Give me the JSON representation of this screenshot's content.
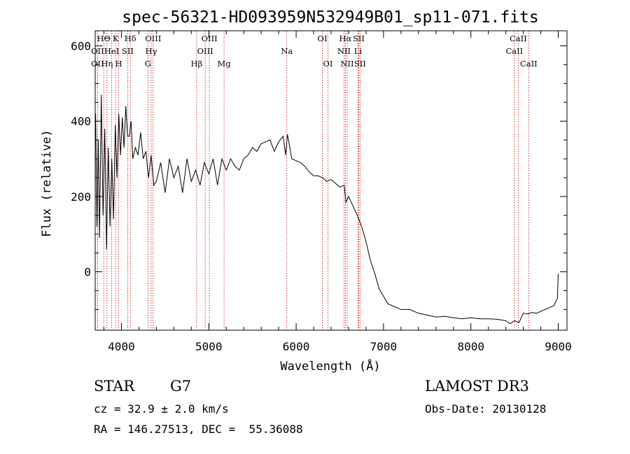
{
  "chart_data": {
    "type": "line",
    "title": "spec-56321-HD093959N532949B01_sp11-071.fits",
    "xlabel": "Wavelength (Å)",
    "ylabel": "Flux (relative)",
    "xlim": [
      3700,
      9100
    ],
    "ylim": [
      -155,
      640
    ],
    "xticks": [
      4000,
      5000,
      6000,
      7000,
      8000,
      9000
    ],
    "yticks": [
      0,
      200,
      400,
      600
    ],
    "series": [
      {
        "name": "flux",
        "x": [
          3705,
          3720,
          3735,
          3750,
          3770,
          3790,
          3810,
          3830,
          3850,
          3870,
          3890,
          3910,
          3930,
          3950,
          3970,
          3990,
          4010,
          4030,
          4050,
          4070,
          4090,
          4110,
          4130,
          4160,
          4190,
          4220,
          4250,
          4280,
          4310,
          4340,
          4370,
          4400,
          4450,
          4500,
          4550,
          4600,
          4650,
          4700,
          4750,
          4800,
          4850,
          4900,
          4950,
          5000,
          5050,
          5100,
          5150,
          5200,
          5250,
          5300,
          5350,
          5400,
          5450,
          5500,
          5550,
          5600,
          5650,
          5700,
          5750,
          5800,
          5850,
          5880,
          5900,
          5920,
          5950,
          6000,
          6050,
          6100,
          6150,
          6200,
          6250,
          6300,
          6350,
          6400,
          6450,
          6500,
          6550,
          6570,
          6600,
          6650,
          6700,
          6750,
          6800,
          6850,
          6900,
          6950,
          7000,
          7050,
          7100,
          7150,
          7200,
          7300,
          7400,
          7500,
          7600,
          7700,
          7800,
          7900,
          8000,
          8100,
          8200,
          8300,
          8400,
          8450,
          8500,
          8550,
          8600,
          8650,
          8700,
          8750,
          8800,
          8850,
          8900,
          8950,
          8990,
          9000
        ],
        "y": [
          420,
          120,
          350,
          90,
          470,
          150,
          380,
          60,
          330,
          120,
          300,
          140,
          390,
          250,
          420,
          310,
          410,
          330,
          440,
          360,
          360,
          400,
          300,
          330,
          310,
          370,
          300,
          320,
          250,
          310,
          230,
          240,
          290,
          210,
          300,
          250,
          280,
          210,
          300,
          240,
          270,
          230,
          290,
          260,
          300,
          230,
          300,
          270,
          300,
          280,
          270,
          300,
          310,
          330,
          320,
          340,
          345,
          350,
          320,
          345,
          360,
          310,
          365,
          340,
          300,
          295,
          290,
          280,
          265,
          255,
          255,
          250,
          240,
          245,
          235,
          225,
          230,
          185,
          200,
          175,
          150,
          120,
          80,
          30,
          -5,
          -45,
          -65,
          -85,
          -90,
          -95,
          -100,
          -100,
          -110,
          -115,
          -120,
          -118,
          -122,
          -125,
          -122,
          -125,
          -125,
          -126,
          -130,
          -138,
          -130,
          -135,
          -110,
          -112,
          -108,
          -110,
          -105,
          -100,
          -95,
          -90,
          -70,
          -5
        ]
      }
    ],
    "spectral_lines": [
      {
        "label": "HΘ",
        "wavelength": 3798,
        "row": 0
      },
      {
        "label": "OII",
        "wavelength": 3727,
        "row": 1
      },
      {
        "label": "OII",
        "wavelength": 3727,
        "row": 2
      },
      {
        "label": "HeI",
        "wavelength": 3889,
        "row": 1
      },
      {
        "label": "Hη",
        "wavelength": 3835,
        "row": 2
      },
      {
        "label": "K",
        "wavelength": 3934,
        "row": 0
      },
      {
        "label": "H",
        "wavelength": 3969,
        "row": 2
      },
      {
        "label": "SII",
        "wavelength": 4072,
        "row": 1
      },
      {
        "label": "Hδ",
        "wavelength": 4102,
        "row": 0
      },
      {
        "label": "OIII",
        "wavelength": 4363,
        "row": 0
      },
      {
        "label": "Hγ",
        "wavelength": 4341,
        "row": 1
      },
      {
        "label": "G",
        "wavelength": 4304,
        "row": 2
      },
      {
        "label": "Hβ",
        "wavelength": 4861,
        "row": 2
      },
      {
        "label": "OIII",
        "wavelength": 5007,
        "row": 0
      },
      {
        "label": "OIII",
        "wavelength": 4959,
        "row": 1
      },
      {
        "label": "Mg",
        "wavelength": 5175,
        "row": 2
      },
      {
        "label": "Na",
        "wavelength": 5893,
        "row": 1
      },
      {
        "label": "OI",
        "wavelength": 6300,
        "row": 0
      },
      {
        "label": "OI",
        "wavelength": 6364,
        "row": 2
      },
      {
        "label": "Hα",
        "wavelength": 6563,
        "row": 0
      },
      {
        "label": "SII",
        "wavelength": 6716,
        "row": 0
      },
      {
        "label": "NII",
        "wavelength": 6548,
        "row": 1
      },
      {
        "label": "Li",
        "wavelength": 6708,
        "row": 1
      },
      {
        "label": "NII",
        "wavelength": 6584,
        "row": 2
      },
      {
        "label": "SII",
        "wavelength": 6731,
        "row": 2
      },
      {
        "label": "CaII",
        "wavelength": 8542,
        "row": 0
      },
      {
        "label": "CaII",
        "wavelength": 8498,
        "row": 1
      },
      {
        "label": "CaII",
        "wavelength": 8662,
        "row": 2
      }
    ]
  },
  "info": {
    "class_label": "STAR",
    "subclass": "G7",
    "survey": "LAMOST DR3",
    "cz_line": "cz = 32.9 ± 2.0 km/s",
    "obs_date_line": "Obs-Date: 20130128",
    "coords_line": "RA = 146.27513, DEC =  55.36088"
  },
  "colors": {
    "spectrum": "#000000",
    "line_marker": "#cc0000",
    "axis": "#000000"
  }
}
